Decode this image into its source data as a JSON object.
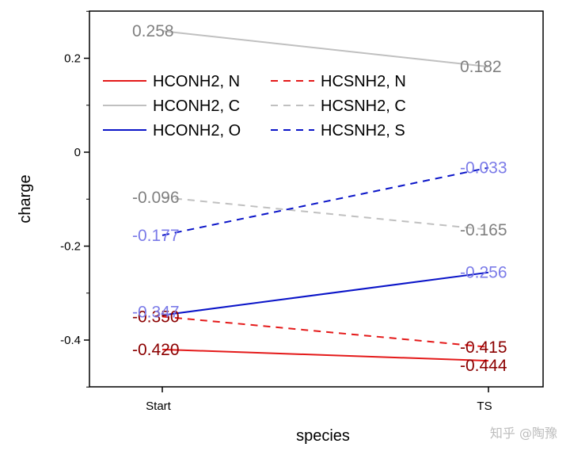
{
  "chart_data": {
    "type": "line",
    "xlabel": "species",
    "ylabel": "charge",
    "categories": [
      "Start",
      "TS"
    ],
    "ylim": [
      -0.5,
      0.3
    ],
    "yticks": [
      0.2,
      0,
      -0.2,
      -0.4
    ],
    "ytick_labels": [
      "0.2",
      "0",
      "-0.2",
      "-0.4"
    ],
    "series": [
      {
        "name": "HCONH2, N",
        "values": [
          -0.42,
          -0.444
        ],
        "labels": [
          "-0.420",
          "-0.444"
        ],
        "color": "#e41a1a",
        "label_color": "#8b0000",
        "dash": "solid"
      },
      {
        "name": "HCSNH2, N",
        "values": [
          -0.35,
          -0.415
        ],
        "labels": [
          "-0.350",
          "-0.415"
        ],
        "color": "#e41a1a",
        "label_color": "#8b0000",
        "dash": "dashed"
      },
      {
        "name": "HCONH2, C",
        "values": [
          0.258,
          0.182
        ],
        "labels": [
          "0.258",
          "0.182"
        ],
        "color": "#c0c0c0",
        "label_color": "#808080",
        "dash": "solid"
      },
      {
        "name": "HCSNH2, C",
        "values": [
          -0.096,
          -0.165
        ],
        "labels": [
          "-0.096",
          "-0.165"
        ],
        "color": "#c0c0c0",
        "label_color": "#808080",
        "dash": "dashed"
      },
      {
        "name": "HCONH2, O",
        "values": [
          -0.347,
          -0.256
        ],
        "labels": [
          "-0.347",
          "-0.256"
        ],
        "color": "#0a14c8",
        "label_color": "#7b7be8",
        "dash": "solid"
      },
      {
        "name": "HCSNH2, S",
        "values": [
          -0.177,
          -0.033
        ],
        "labels": [
          "-0.177",
          "-0.033"
        ],
        "color": "#0a14c8",
        "label_color": "#7b7be8",
        "dash": "dashed"
      }
    ],
    "legend_position": "top-left",
    "watermark": "知乎 @陶豫"
  }
}
